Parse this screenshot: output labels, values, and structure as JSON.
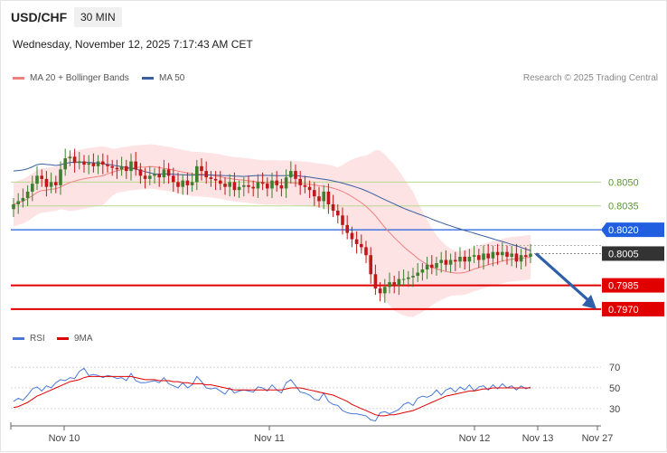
{
  "header": {
    "symbol": "USD/CHF",
    "timeframe": "30 MIN",
    "datetime": "Wednesday, November 12, 2025 7:17:43 AM CET",
    "credit": "Research © 2025 Trading Central"
  },
  "legend": {
    "ma20": "MA 20 + Bollinger Bands",
    "ma50": "MA 50",
    "rsi": "RSI",
    "rsi_ma": "9MA"
  },
  "colors": {
    "ma20": "#f08080",
    "bollinger_fill": "#fde3e3",
    "ma50": "#3a5fa0",
    "support": "#e00000",
    "resistance": "#1f5fe0",
    "level_green": "#b8d890",
    "bull": "#3f7f30",
    "bear": "#c01818",
    "rsi": "#4a78d8",
    "rsi_ma": "#e00000",
    "current": "#333333"
  },
  "chart_data": [
    {
      "type": "candlestick",
      "x_labels": [
        "Nov 10",
        "Nov 11",
        "Nov 12",
        "Nov 13",
        "Nov 27"
      ],
      "ylim": [
        0.7958,
        0.811
      ],
      "levels": [
        {
          "kind": "target",
          "value": 0.805,
          "label": "0.8050"
        },
        {
          "kind": "target",
          "value": 0.8035,
          "label": "0.8035"
        },
        {
          "kind": "resistance",
          "value": 0.802,
          "label": "0.8020"
        },
        {
          "kind": "current",
          "value": 0.8005,
          "label": "0.8005"
        },
        {
          "kind": "support",
          "value": 0.7985,
          "label": "0.7985"
        },
        {
          "kind": "support",
          "value": 0.797,
          "label": "0.7970"
        }
      ],
      "close": [
        0.8036,
        0.8038,
        0.804,
        0.8044,
        0.8049,
        0.8054,
        0.8052,
        0.8047,
        0.805,
        0.8048,
        0.8058,
        0.8065,
        0.8066,
        0.8062,
        0.8063,
        0.8061,
        0.8062,
        0.806,
        0.8063,
        0.8061,
        0.806,
        0.8059,
        0.8058,
        0.806,
        0.8057,
        0.8063,
        0.8058,
        0.8054,
        0.8052,
        0.8054,
        0.8055,
        0.8053,
        0.8058,
        0.8054,
        0.805,
        0.8047,
        0.8051,
        0.8048,
        0.805,
        0.806,
        0.8057,
        0.8053,
        0.8052,
        0.8051,
        0.8049,
        0.8047,
        0.805,
        0.8045,
        0.8047,
        0.8048,
        0.8047,
        0.8046,
        0.805,
        0.8049,
        0.8046,
        0.8051,
        0.8048,
        0.8046,
        0.8053,
        0.8057,
        0.8052,
        0.8048,
        0.8047,
        0.8045,
        0.8041,
        0.8038,
        0.8044,
        0.8036,
        0.8032,
        0.8029,
        0.8023,
        0.8018,
        0.8014,
        0.8011,
        0.8009,
        0.8004,
        0.7992,
        0.7983,
        0.798,
        0.7984,
        0.7987,
        0.7985,
        0.7989,
        0.7989,
        0.799,
        0.7991,
        0.7993,
        0.7995,
        0.7998,
        0.7996,
        0.7999,
        0.8001,
        0.7998,
        0.8001,
        0.8,
        0.8003,
        0.8,
        0.8003,
        0.8004,
        0.8001,
        0.8005,
        0.8002,
        0.8006,
        0.8004,
        0.8006,
        0.8003,
        0.8005,
        0.8,
        0.8004,
        0.8003,
        0.8005
      ],
      "ma20_end": 0.8,
      "ma50_end": 0.8007,
      "forecast": {
        "from": 0.8005,
        "to": 0.797
      }
    },
    {
      "type": "line",
      "name": "RSI",
      "yticks": [
        70,
        50,
        30
      ],
      "ylim": [
        15,
        85
      ],
      "rsi": [
        37,
        40,
        38,
        43,
        49,
        51,
        47,
        52,
        50,
        55,
        58,
        57,
        60,
        59,
        66,
        69,
        62,
        63,
        62,
        60,
        62,
        61,
        59,
        60,
        57,
        64,
        57,
        55,
        55,
        56,
        57,
        55,
        60,
        54,
        52,
        50,
        55,
        50,
        53,
        61,
        56,
        50,
        49,
        50,
        47,
        44,
        50,
        45,
        47,
        48,
        47,
        46,
        51,
        50,
        47,
        53,
        48,
        45,
        55,
        58,
        52,
        46,
        45,
        43,
        39,
        38,
        45,
        37,
        34,
        33,
        28,
        26,
        25,
        25,
        24,
        23,
        19,
        18,
        26,
        27,
        25,
        27,
        29,
        34,
        36,
        33,
        40,
        42,
        41,
        43,
        48,
        43,
        48,
        50,
        46,
        51,
        48,
        53,
        47,
        51,
        52,
        48,
        53,
        49,
        54,
        50,
        52,
        48,
        52,
        49,
        51
      ],
      "rsi_ma": [
        31,
        32,
        34,
        36,
        39,
        42,
        44,
        46,
        48,
        50,
        52,
        54,
        56,
        57,
        58,
        60,
        61,
        61,
        61,
        61,
        61,
        61,
        61,
        61,
        61,
        61,
        60,
        59,
        58,
        58,
        58,
        57,
        57,
        57,
        56,
        56,
        55,
        55,
        54,
        54,
        54,
        53,
        53,
        52,
        51,
        50,
        49,
        48,
        48,
        48,
        48,
        48,
        48,
        48,
        48,
        48,
        48,
        48,
        49,
        50,
        50,
        50,
        49,
        48,
        47,
        46,
        45,
        44,
        43,
        41,
        39,
        37,
        34,
        32,
        30,
        28,
        26,
        24,
        23,
        23,
        24,
        24,
        25,
        26,
        27,
        28,
        30,
        32,
        34,
        36,
        38,
        40,
        42,
        43,
        44,
        45,
        46,
        47,
        47,
        48,
        49,
        49,
        50,
        50,
        50,
        50,
        50,
        50,
        50,
        50,
        50
      ]
    }
  ]
}
